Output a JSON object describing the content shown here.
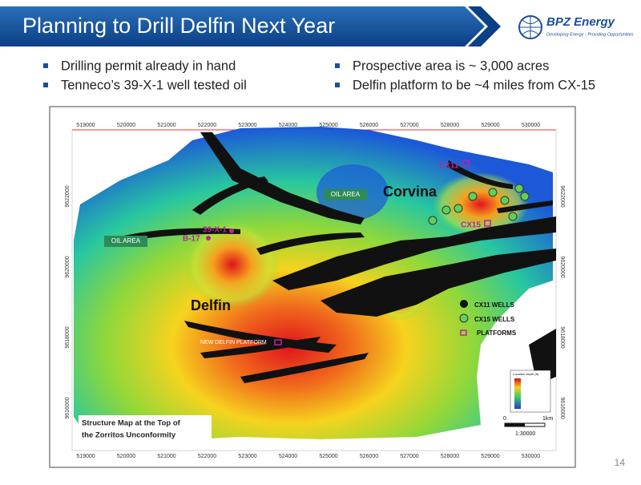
{
  "header": {
    "title": "Planning to Drill Delfin Next Year",
    "logo_name": "BPZ Energy",
    "logo_tagline": "Developing Energy - Providing Opportunities"
  },
  "bullets": {
    "left": [
      "Drilling permit already in hand",
      "Tenneco’s 39-X-1 well tested oil"
    ],
    "right": [
      "Prospective area is ~ 3,000 acres",
      "Delfin platform to be ~4 miles from CX-15"
    ]
  },
  "map": {
    "x_labels": [
      "519000",
      "520000",
      "521000",
      "522000",
      "523000",
      "524000",
      "525000",
      "526000",
      "527000",
      "528000",
      "529000",
      "530000"
    ],
    "y_labels": [
      "9622000",
      "9620000",
      "9618000",
      "9616000"
    ],
    "oil_area_labels": [
      "OIL AREA",
      "OIL AREA"
    ],
    "fields": {
      "corvina": "Corvina",
      "delfin": "Delfin"
    },
    "wells": {
      "cx11": "CX11",
      "cx15": "CX15",
      "x39": "39-X-1",
      "b17": "B-17"
    },
    "new_platform": "NEW DELFIN PLATFORM",
    "legend": [
      "CX11 WELLS",
      "CX15 WELLS",
      "PLATFORMS"
    ],
    "caption": [
      "Structure Map at the Top of",
      "the Zorritos Unconformity"
    ],
    "colorbar_title": "Location depth (ft)",
    "scale": {
      "start": "0",
      "end": "1km",
      "ratio": "1:30000"
    }
  },
  "page_number": "14"
}
